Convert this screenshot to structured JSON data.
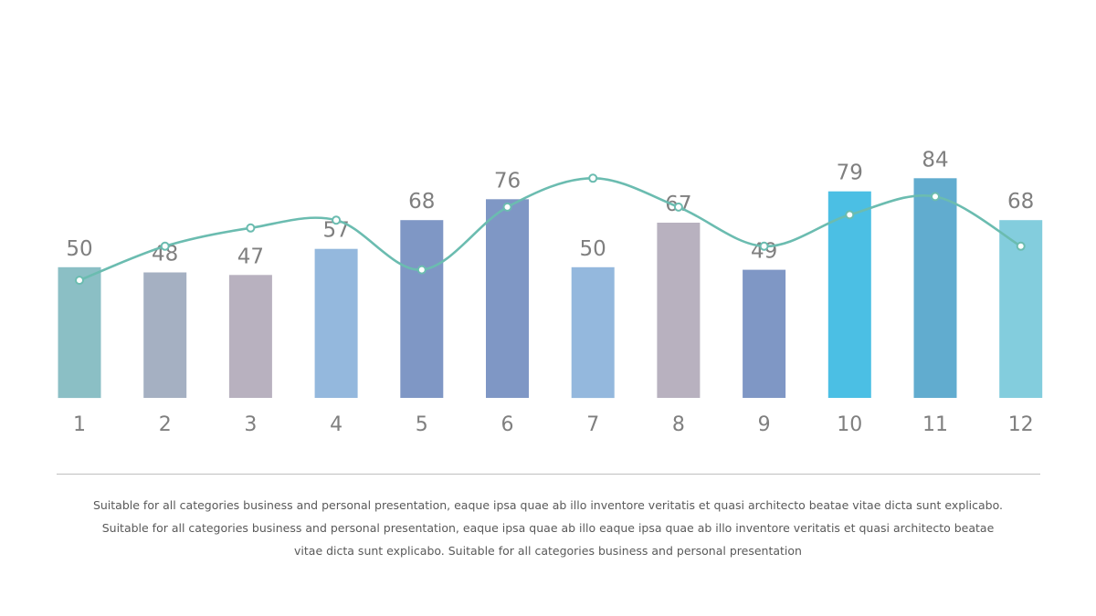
{
  "chart_data": {
    "type": "bar",
    "categories": [
      "1",
      "2",
      "3",
      "4",
      "5",
      "6",
      "7",
      "8",
      "9",
      "10",
      "11",
      "12"
    ],
    "series": [
      {
        "name": "bars",
        "type": "bar",
        "values": [
          50,
          48,
          47,
          57,
          68,
          76,
          50,
          67,
          49,
          79,
          84,
          68
        ],
        "colors": [
          "#8bbfc5",
          "#a5b0c2",
          "#b8b1bf",
          "#94b8dd",
          "#7f97c5",
          "#7f97c5",
          "#94b8dd",
          "#b8b1bf",
          "#7f97c5",
          "#4bbfe4",
          "#61accf",
          "#83cddd"
        ]
      },
      {
        "name": "trend",
        "type": "line",
        "values": [
          45,
          58,
          65,
          68,
          49,
          73,
          84,
          73,
          58,
          70,
          77,
          58
        ],
        "color": "#6bbcb0"
      }
    ],
    "ylim": [
      0,
      100
    ],
    "title": "",
    "xlabel": "",
    "ylabel": ""
  },
  "caption": {
    "lines": [
      "Suitable for all categories business and personal presentation, eaque ipsa quae ab illo inventore veritatis et quasi architecto beatae vitae dicta sunt explicabo.",
      "Suitable for all categories business and personal presentation, eaque ipsa quae ab illo eaque ipsa quae ab illo inventore veritatis et quasi architecto beatae",
      "vitae dicta sunt explicabo. Suitable for all categories business and personal presentation"
    ]
  }
}
